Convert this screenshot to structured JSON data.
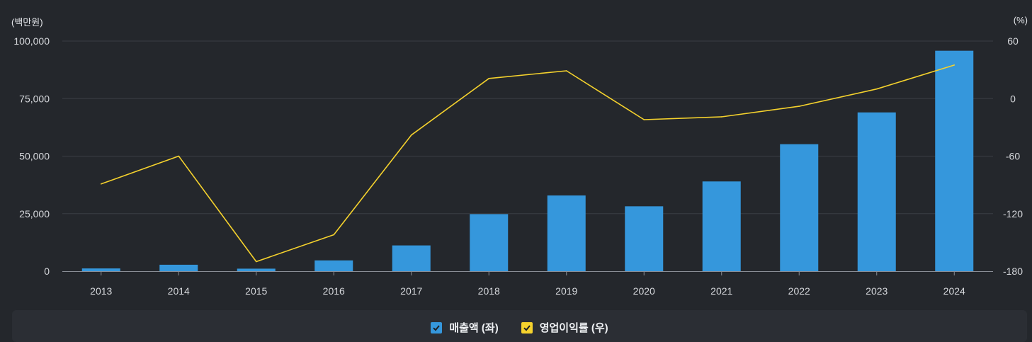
{
  "units": {
    "left": "(백만원)",
    "right": "(%)"
  },
  "colors": {
    "bar": "#3597dc",
    "line": "#f5d22d",
    "grid": "#3a3e45",
    "axis": "#8a8e96"
  },
  "legend": [
    {
      "label": "매출액 (좌)",
      "color": "#3597dc",
      "icon": "checkbox-checked-icon"
    },
    {
      "label": "영업이익률 (우)",
      "color": "#f5d22d",
      "icon": "checkbox-checked-icon"
    }
  ],
  "chart_data": {
    "type": "bar",
    "categories": [
      "2013",
      "2014",
      "2015",
      "2016",
      "2017",
      "2018",
      "2019",
      "2020",
      "2021",
      "2022",
      "2023",
      "2024"
    ],
    "series": [
      {
        "name": "매출액 (좌)",
        "type": "bar",
        "axis": "left",
        "values": [
          1200,
          2800,
          1100,
          4700,
          11200,
          24800,
          32900,
          28200,
          39000,
          55200,
          69000,
          95800
        ]
      },
      {
        "name": "영업이익률 (우)",
        "type": "line",
        "axis": "right",
        "values": [
          -89,
          -60,
          -170,
          -142,
          -38,
          21,
          29,
          -22,
          -19,
          -8,
          10,
          35
        ]
      }
    ],
    "y_left": {
      "ylim": [
        0,
        100000
      ],
      "ticks": [
        0,
        25000,
        50000,
        75000,
        100000
      ],
      "tick_labels": [
        "0",
        "25,000",
        "50,000",
        "75,000",
        "100,000"
      ]
    },
    "y_right": {
      "ylim": [
        -180,
        60
      ],
      "ticks": [
        -180,
        -120,
        -60,
        0,
        60
      ],
      "tick_labels": [
        "-180",
        "-120",
        "-60",
        "0",
        "60"
      ]
    },
    "grid": true,
    "legend_position": "bottom-center"
  }
}
